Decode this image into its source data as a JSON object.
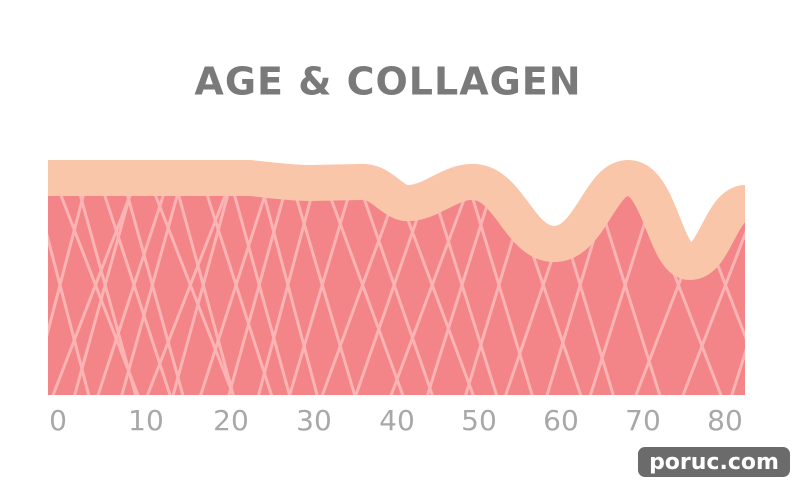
{
  "title": "AGE & COLLAGEN",
  "age_labels": [
    0,
    10,
    20,
    30,
    40,
    50,
    60,
    70,
    80
  ],
  "watermark": "poruc.com"
}
